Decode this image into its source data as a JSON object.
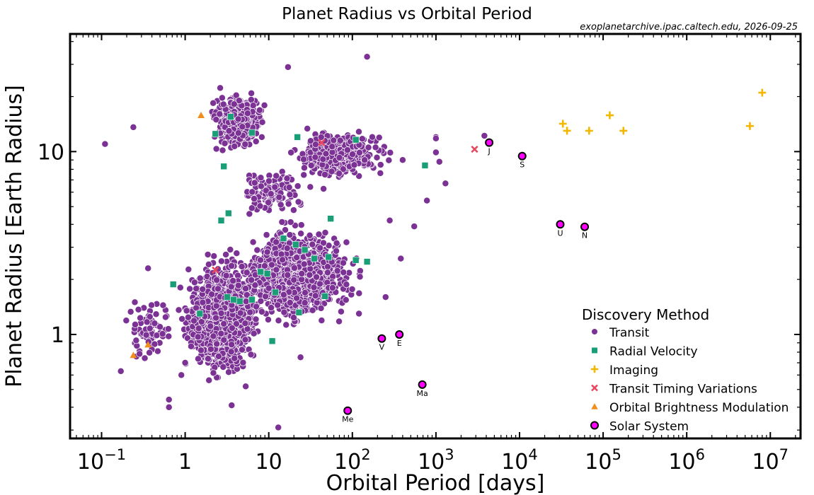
{
  "chart_data": {
    "type": "scatter",
    "title": "Planet Radius vs Orbital Period",
    "source": "exoplanetarchive.ipac.caltech.edu, 2026-09-25",
    "xlabel": "Orbital Period [days]",
    "ylabel": "Planet Radius [Earth Radius]",
    "x_scale": "log",
    "y_scale": "log",
    "xlim": [
      0.042,
      23000000
    ],
    "ylim": [
      0.27,
      44
    ],
    "x_tick_labels": [
      "10^-1",
      "1",
      "10",
      "10^2",
      "10^3",
      "10^4",
      "10^5",
      "10^6",
      "10^7"
    ],
    "y_tick_labels": [
      "1",
      "10"
    ],
    "grid": false,
    "legend_title": "Discovery Method",
    "legend_position": "lower-right",
    "series": [
      {
        "name": "Transit",
        "color": "#7b3294",
        "marker": "circle",
        "points_note": "several thousand points",
        "points": [
          [
            0.11,
            11.0
          ],
          [
            0.24,
            13.6
          ],
          [
            0.17,
            0.63
          ],
          [
            0.64,
            0.4
          ],
          [
            0.64,
            0.44
          ],
          [
            13.0,
            0.31
          ],
          [
            3.6,
            0.41
          ],
          [
            5.3,
            0.52
          ],
          [
            17,
            29
          ],
          [
            150,
            33
          ],
          [
            1000,
            12.0
          ],
          [
            1000,
            11.8
          ],
          [
            1000,
            9.9
          ],
          [
            1300,
            6.7
          ],
          [
            3800,
            12.2
          ],
          [
            1100,
            8.8
          ],
          [
            780,
            5.4
          ],
          [
            400,
            9.0
          ],
          [
            280,
            4.2
          ],
          [
            380,
            2.6
          ],
          [
            120,
            1.3
          ],
          [
            250,
            1.6
          ],
          [
            550,
            3.9
          ],
          [
            0.25,
            1.5
          ],
          [
            0.5,
            1.1
          ],
          [
            0.9,
            0.6
          ],
          [
            0.36,
            2.3
          ],
          [
            1.0,
            0.7
          ],
          [
            24,
            0.75
          ],
          [
            58,
            1.8
          ]
        ],
        "clusters": [
          {
            "x_range": [
              0.7,
              10
            ],
            "y_range": [
              0.5,
              3.0
            ],
            "count": 1500
          },
          {
            "x_range": [
              2,
              200
            ],
            "y_range": [
              1.0,
              4.5
            ],
            "count": 1300
          },
          {
            "x_range": [
              1.5,
              12
            ],
            "y_range": [
              9,
              24
            ],
            "count": 400
          },
          {
            "x_range": [
              10,
              500
            ],
            "y_range": [
              6,
              15
            ],
            "count": 300
          },
          {
            "x_range": [
              3,
              40
            ],
            "y_range": [
              4,
              9
            ],
            "count": 120
          },
          {
            "x_range": [
              0.15,
              1
            ],
            "y_range": [
              0.6,
              1.8
            ],
            "count": 70
          }
        ]
      },
      {
        "name": "Radial Velocity",
        "color": "#1a9e77",
        "marker": "square",
        "points": [
          [
            3.5,
            15.5
          ],
          [
            2.3,
            12.5
          ],
          [
            6.3,
            12.7
          ],
          [
            22,
            12.0
          ],
          [
            110,
            11.6
          ],
          [
            2.9,
            8.3
          ],
          [
            740,
            8.4
          ],
          [
            3.3,
            4.6
          ],
          [
            2.7,
            4.2
          ],
          [
            55,
            4.3
          ],
          [
            15,
            3.35
          ],
          [
            21,
            3.1
          ],
          [
            27,
            2.9
          ],
          [
            35,
            2.6
          ],
          [
            52,
            2.65
          ],
          [
            110,
            2.55
          ],
          [
            150,
            2.5
          ],
          [
            8.0,
            2.2
          ],
          [
            9.6,
            2.15
          ],
          [
            0.72,
            1.88
          ],
          [
            3.2,
            1.6
          ],
          [
            3.8,
            1.55
          ],
          [
            4.5,
            1.52
          ],
          [
            6.3,
            1.55
          ],
          [
            12,
            1.7
          ],
          [
            47,
            1.62
          ],
          [
            1.5,
            1.3
          ],
          [
            23,
            1.32
          ],
          [
            11,
            0.92
          ]
        ]
      },
      {
        "name": "Imaging",
        "color": "#f2b701",
        "marker": "plus",
        "points": [
          [
            33000,
            14.2
          ],
          [
            37000,
            13.0
          ],
          [
            68000,
            13.0
          ],
          [
            120000,
            15.8
          ],
          [
            175000,
            13.0
          ],
          [
            5700000,
            13.8
          ],
          [
            8000000,
            21.0
          ]
        ]
      },
      {
        "name": "Transit Timing Variations",
        "color": "#e8475f",
        "marker": "x",
        "points": [
          [
            43,
            11.2
          ],
          [
            2900,
            10.3
          ],
          [
            2.3,
            2.25
          ]
        ]
      },
      {
        "name": "Orbital Brightness Modulation",
        "color": "#f28e1c",
        "marker": "triangle",
        "points": [
          [
            1.55,
            15.8
          ],
          [
            0.36,
            0.88
          ],
          [
            0.24,
            0.77
          ]
        ]
      },
      {
        "name": "Solar System",
        "color": "#ff00ff",
        "marker": "circle-outline",
        "points": [
          {
            "label": "Me",
            "x": 88,
            "y": 0.383
          },
          {
            "label": "V",
            "x": 225,
            "y": 0.95
          },
          {
            "label": "E",
            "x": 365,
            "y": 1.0
          },
          {
            "label": "Ma",
            "x": 687,
            "y": 0.532
          },
          {
            "label": "J",
            "x": 4333,
            "y": 11.2
          },
          {
            "label": "S",
            "x": 10759,
            "y": 9.45
          },
          {
            "label": "U",
            "x": 30687,
            "y": 4.0
          },
          {
            "label": "N",
            "x": 60190,
            "y": 3.88
          }
        ]
      }
    ]
  }
}
